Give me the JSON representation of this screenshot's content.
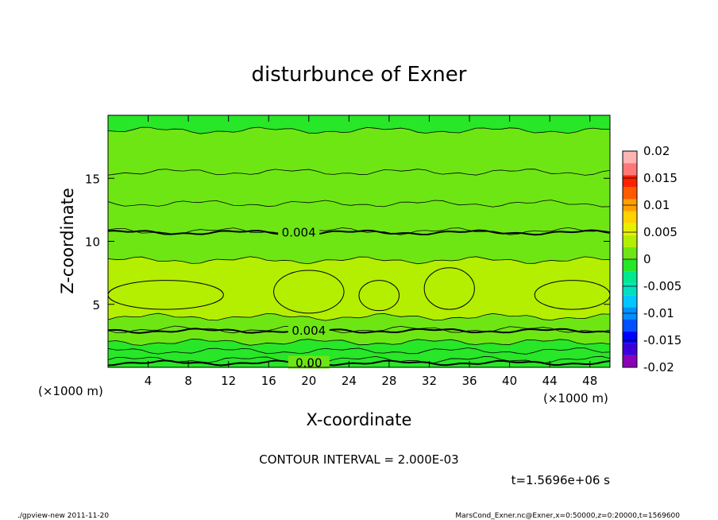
{
  "chart_data": {
    "type": "heatmap",
    "title": "disturbunce of Exner",
    "xlabel": "X-coordinate",
    "ylabel": "Z-coordinate",
    "x_unit_left": "(×1000 m)",
    "x_unit_right": "(×1000 m)",
    "xlim": [
      0,
      50
    ],
    "ylim": [
      0,
      20
    ],
    "x_ticks": [
      4,
      8,
      12,
      16,
      20,
      24,
      28,
      32,
      36,
      40,
      44,
      48
    ],
    "y_ticks": [
      5,
      10,
      15
    ],
    "contour_interval_text": "CONTOUR INTERVAL = 2.000E-03",
    "time_text": "t=1.5696e+06 s",
    "colorbar": {
      "ticks": [
        "0.02",
        "0.015",
        "0.01",
        "0.005",
        "0",
        "-0.005",
        "-0.01",
        "-0.015",
        "-0.02"
      ],
      "levels": [
        -0.02,
        -0.0175,
        -0.015,
        -0.0125,
        -0.01,
        -0.0075,
        -0.005,
        -0.0025,
        0,
        0.0025,
        0.005,
        0.0075,
        0.01,
        0.0125,
        0.015,
        0.0175,
        0.02
      ],
      "colors": [
        "#8a00b8",
        "#3b00d8",
        "#0000ff",
        "#0050ff",
        "#0090ff",
        "#00c8ff",
        "#00e0c0",
        "#00e890",
        "#28e628",
        "#6ee614",
        "#b4ee00",
        "#e8f000",
        "#ffd200",
        "#ffa000",
        "#ff5a00",
        "#ff2000",
        "#ff7878",
        "#ffb4b4"
      ]
    },
    "horizontal_bands": [
      {
        "z": [
          0.0,
          0.6
        ],
        "value": 0.0
      },
      {
        "z": [
          0.6,
          1.3
        ],
        "value": 0.001
      },
      {
        "z": [
          1.3,
          2.0
        ],
        "value": 0.002
      },
      {
        "z": [
          2.0,
          3.0
        ],
        "value": 0.003
      },
      {
        "z": [
          3.0,
          4.0
        ],
        "value": 0.004
      },
      {
        "z": [
          4.0,
          8.5
        ],
        "value": 0.005
      },
      {
        "z": [
          8.5,
          10.8
        ],
        "value": 0.0045
      },
      {
        "z": [
          10.8,
          13.0
        ],
        "value": 0.0035
      },
      {
        "z": [
          13.0,
          15.5
        ],
        "value": 0.003
      },
      {
        "z": [
          15.5,
          18.8
        ],
        "value": 0.0025
      },
      {
        "z": [
          18.8,
          20.0
        ],
        "value": 0.002
      }
    ],
    "cells": [
      {
        "x": [
          0,
          11.5
        ],
        "z": [
          4.6,
          6.9
        ],
        "value": 0.006
      },
      {
        "x": [
          16.5,
          23.5
        ],
        "z": [
          4.3,
          7.7
        ],
        "value": 0.006
      },
      {
        "x": [
          25.0,
          29.0
        ],
        "z": [
          4.5,
          6.9
        ],
        "value": 0.006
      },
      {
        "x": [
          31.5,
          36.5
        ],
        "z": [
          4.6,
          7.9
        ],
        "value": 0.006
      },
      {
        "x": [
          42.5,
          50.0
        ],
        "z": [
          4.6,
          6.9
        ],
        "value": 0.006
      }
    ],
    "contour_lines": [
      {
        "label": "0.004",
        "z": 10.7,
        "label_x": 19
      },
      {
        "label": "0.004",
        "z": 2.9,
        "label_x": 20
      },
      {
        "label": "0.00",
        "z": 0.35,
        "label_x": 20
      }
    ]
  },
  "footer": {
    "left": "./gpview-new   2011-11-20",
    "right": "MarsCond_Exner.nc@Exner,x=0:50000,z=0:20000,t=1569600"
  }
}
